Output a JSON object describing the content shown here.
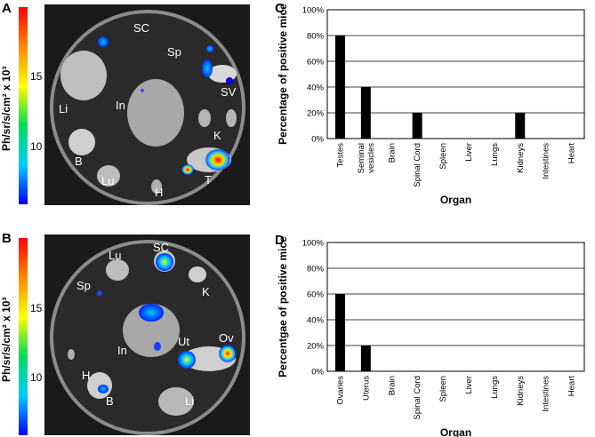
{
  "panels": {
    "A": "A",
    "B": "B",
    "C": "C",
    "D": "D"
  },
  "colorbar": {
    "label": "Ph/sr/s/cm² x 10³",
    "ticks_top": [
      "15",
      "10"
    ],
    "ticks_bottom": [
      "15",
      "10"
    ],
    "colors": [
      "#ff0000",
      "#ff8800",
      "#ffff00",
      "#00dd55",
      "#00ccff",
      "#0000ff"
    ]
  },
  "photo_a_labels": {
    "SC": "SC",
    "Sp": "Sp",
    "SV": "SV",
    "Li": "Li",
    "In": "In",
    "K": "K",
    "B": "B",
    "Lu": "Lu",
    "H": "H",
    "T": "T"
  },
  "photo_b_labels": {
    "SC": "SC",
    "Lu": "Lu",
    "Sp": "Sp",
    "K": "K",
    "In": "In",
    "Ut": "Ut",
    "Ov": "Ov",
    "H": "H",
    "B": "B",
    "Li": "Li"
  },
  "chart_data": [
    {
      "type": "bar",
      "categories": [
        "Testes",
        "Seminal vesicles",
        "Brain",
        "Spinal Cord",
        "Spleen",
        "Liver",
        "Lungs",
        "Kidneys",
        "Intestines",
        "Heart"
      ],
      "values": [
        80,
        40,
        0,
        20,
        0,
        0,
        0,
        20,
        0,
        0
      ],
      "ylabel": "Percentage of positive mice",
      "xlabel": "Organ",
      "ylim": [
        0,
        100
      ],
      "yticks": [
        "0%",
        "20%",
        "40%",
        "60%",
        "80%",
        "100%"
      ],
      "grid": true,
      "bar_color": "#000000"
    },
    {
      "type": "bar",
      "categories": [
        "Ovaries",
        "Uterus",
        "Brain",
        "Spinal Cord",
        "Spleen",
        "Liver",
        "Lungs",
        "Kidneys",
        "Intestines",
        "Heart"
      ],
      "values": [
        60,
        20,
        0,
        0,
        0,
        0,
        0,
        0,
        0,
        0
      ],
      "ylabel": "Percentgae of positive mice",
      "xlabel": "Organ",
      "ylim": [
        0,
        100
      ],
      "yticks": [
        "0%",
        "20%",
        "40%",
        "60%",
        "80%",
        "100%"
      ],
      "grid": true,
      "bar_color": "#000000"
    }
  ]
}
